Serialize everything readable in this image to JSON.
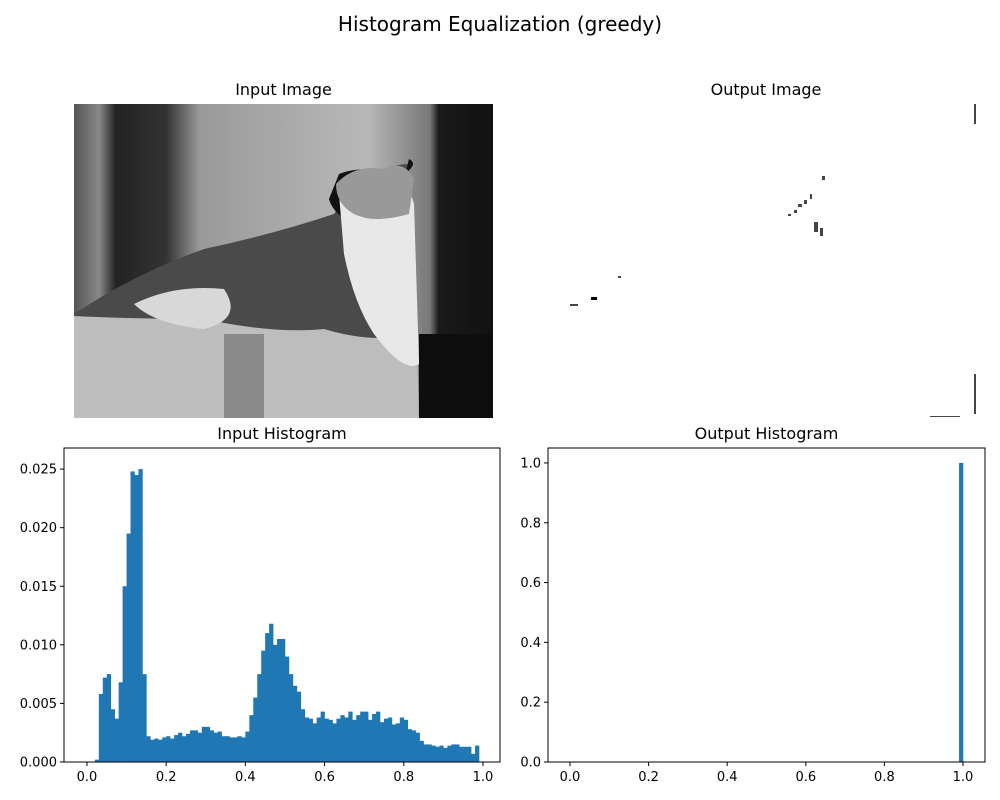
{
  "suptitle": "Histogram Equalization (greedy)",
  "panels": {
    "input_image_title": "Input Image",
    "output_image_title": "Output Image"
  },
  "chart_data": [
    {
      "type": "bar",
      "title": "Input Histogram",
      "xlim": [
        -0.058,
        1.043
      ],
      "ylim": [
        0,
        0.0268
      ],
      "xticks": [
        "0.0",
        "0.2",
        "0.4",
        "0.6",
        "0.8",
        "1.0"
      ],
      "yticks": [
        "0.000",
        "0.005",
        "0.010",
        "0.015",
        "0.020",
        "0.025"
      ],
      "bin_width": 0.01,
      "bin_starts": [
        0.0,
        0.01,
        0.02,
        0.03,
        0.04,
        0.05,
        0.06,
        0.07,
        0.08,
        0.09,
        0.1,
        0.11,
        0.12,
        0.13,
        0.14,
        0.15,
        0.16,
        0.17,
        0.18,
        0.19,
        0.2,
        0.21,
        0.22,
        0.23,
        0.24,
        0.25,
        0.26,
        0.27,
        0.28,
        0.29,
        0.3,
        0.31,
        0.32,
        0.33,
        0.34,
        0.35,
        0.36,
        0.37,
        0.38,
        0.39,
        0.4,
        0.41,
        0.42,
        0.43,
        0.44,
        0.45,
        0.46,
        0.47,
        0.48,
        0.49,
        0.5,
        0.51,
        0.52,
        0.53,
        0.54,
        0.55,
        0.56,
        0.57,
        0.58,
        0.59,
        0.6,
        0.61,
        0.62,
        0.63,
        0.64,
        0.65,
        0.66,
        0.67,
        0.68,
        0.69,
        0.7,
        0.71,
        0.72,
        0.73,
        0.74,
        0.75,
        0.76,
        0.77,
        0.78,
        0.79,
        0.8,
        0.81,
        0.82,
        0.83,
        0.84,
        0.85,
        0.86,
        0.87,
        0.88,
        0.89,
        0.9,
        0.91,
        0.92,
        0.93,
        0.94,
        0.95,
        0.96,
        0.97,
        0.98
      ],
      "values": [
        0,
        0,
        0.0002,
        0.0058,
        0.0072,
        0.0075,
        0.0045,
        0.0037,
        0.0068,
        0.015,
        0.0195,
        0.0248,
        0.0245,
        0.025,
        0.0075,
        0.0022,
        0.0019,
        0.002,
        0.0019,
        0.0021,
        0.0022,
        0.002,
        0.0023,
        0.0025,
        0.0022,
        0.0024,
        0.0027,
        0.0027,
        0.0025,
        0.003,
        0.003,
        0.0027,
        0.0025,
        0.0026,
        0.0022,
        0.0022,
        0.0021,
        0.0021,
        0.0022,
        0.0021,
        0.0026,
        0.004,
        0.0055,
        0.0075,
        0.0095,
        0.011,
        0.0118,
        0.01,
        0.0105,
        0.0105,
        0.009,
        0.0075,
        0.0065,
        0.006,
        0.0045,
        0.0038,
        0.0037,
        0.0033,
        0.0038,
        0.0043,
        0.0037,
        0.0036,
        0.0033,
        0.0037,
        0.004,
        0.0038,
        0.0043,
        0.0036,
        0.004,
        0.0043,
        0.0043,
        0.0036,
        0.0041,
        0.0043,
        0.0034,
        0.0037,
        0.0038,
        0.0032,
        0.0033,
        0.0038,
        0.0036,
        0.0028,
        0.0027,
        0.0025,
        0.0018,
        0.0015,
        0.0015,
        0.0014,
        0.0013,
        0.0014,
        0.0012,
        0.0014,
        0.0015,
        0.0015,
        0.0013,
        0.0013,
        0.0013,
        0.0007,
        0.0014
      ],
      "color": "#1f77b4",
      "grid": false
    },
    {
      "type": "bar",
      "title": "Output Histogram",
      "xlim": [
        -0.056,
        1.056
      ],
      "ylim": [
        0,
        1.05
      ],
      "xticks": [
        "0.0",
        "0.2",
        "0.4",
        "0.6",
        "0.8",
        "1.0"
      ],
      "yticks": [
        "0.0",
        "0.2",
        "0.4",
        "0.6",
        "0.8",
        "1.0"
      ],
      "bin_width": 0.01,
      "bin_starts": [
        0.99
      ],
      "values": [
        1.0
      ],
      "color": "#1f77b4",
      "grid": false
    }
  ]
}
